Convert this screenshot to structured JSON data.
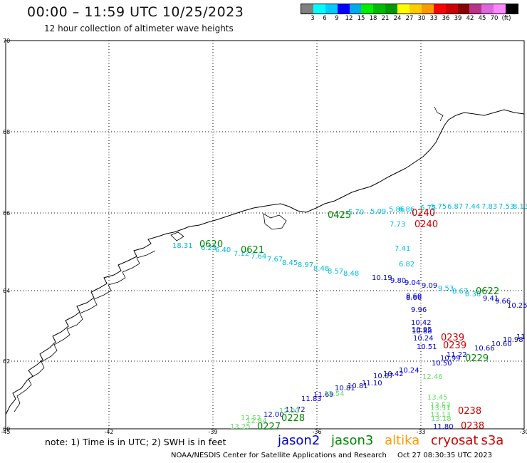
{
  "title": "00:00 – 11:59 UTC 10/25/2023",
  "subtitle": "12 hour collection of altimeter wave heights",
  "legend": {
    "colors": [
      "#808080",
      "#00ffff",
      "#00ccff",
      "#0000ff",
      "#00aaee",
      "#00ee00",
      "#00bb00",
      "#009900",
      "#ffff00",
      "#ffcc00",
      "#ff9900",
      "#ff0000",
      "#cc0000",
      "#880000",
      "#bb3388",
      "#dd66dd",
      "#ff88ff",
      "#000000"
    ],
    "labels": [
      "3",
      "6",
      "9",
      "12",
      "15",
      "18",
      "21",
      "24",
      "27",
      "30",
      "33",
      "36",
      "39",
      "42",
      "45",
      "70",
      "(ft)"
    ]
  },
  "axes": {
    "lat_labels": [
      "70",
      "68",
      "66",
      "64",
      "62",
      "60"
    ],
    "lon_labels": [
      "-45",
      "-42",
      "-39",
      "-36",
      "-33",
      "-30"
    ]
  },
  "track_jason2": {
    "name": "jason2",
    "color": "#0000cc",
    "wave_labels": [
      "10.19",
      "9.80",
      "9.04",
      "9.09",
      "8.60",
      "8.66",
      "9.96",
      "10.42",
      "10.88",
      "10.95",
      "10.24",
      "10.51",
      "10.99",
      "10.60",
      "10.66",
      "10.98",
      "11",
      "10.25",
      "9.66",
      "9.41",
      "11.22",
      "10.50",
      "10.24",
      "10.07",
      "10.42",
      "10.81",
      "10.81",
      "11.10",
      "11.69",
      "11.83",
      "11.72",
      "12.00"
    ]
  },
  "track_jason3": {
    "name": "jason3",
    "color": "#008800",
    "time_labels": [
      "0425",
      "0620",
      "0621",
      "0622",
      "0229",
      "0228",
      "0227"
    ]
  },
  "track_altika": {
    "name": "altika",
    "color": "#ff9900"
  },
  "track_cryosat": {
    "name": "cryosat",
    "color": "#cc0000",
    "time_labels": [
      "0240",
      "0240",
      "0239",
      "0239",
      "0238",
      "0238"
    ]
  },
  "track_s3a": {
    "name": "s3a",
    "color": "#cc0000"
  },
  "track_cyan": {
    "color": "#00bbdd",
    "wave_labels": [
      "5.70",
      "5.09",
      "5.86",
      "6.86",
      "6.75",
      "5.75",
      "6.87",
      "7.44",
      "7.83",
      "7.53",
      "8.13",
      "7.73",
      "7.41",
      "6.82",
      "6.23",
      "6.40",
      "7.12",
      "7.64",
      "7.67",
      "8.45",
      "8.97",
      "8.48",
      "8.57",
      "8.48",
      "9.53",
      "8.67",
      "8.38",
      "18.31"
    ]
  },
  "track_lightgreen": {
    "color": "#66dd66",
    "wave_labels": [
      "12.46",
      "13.45",
      "13.53",
      "13.51",
      "13.13",
      "13.18",
      "12.00",
      "13.25",
      "12.84",
      "12.52",
      "12.54"
    ]
  },
  "track_blue_south": {
    "wave_labels": [
      "11.80"
    ]
  },
  "note": "note: 1) Time is in UTC; 2) SWH is in feet",
  "credit_org": "NOAA/NESDIS Center for Satellite Applications and Research",
  "credit_time": "Oct 27 08:30:35 UTC 2023"
}
